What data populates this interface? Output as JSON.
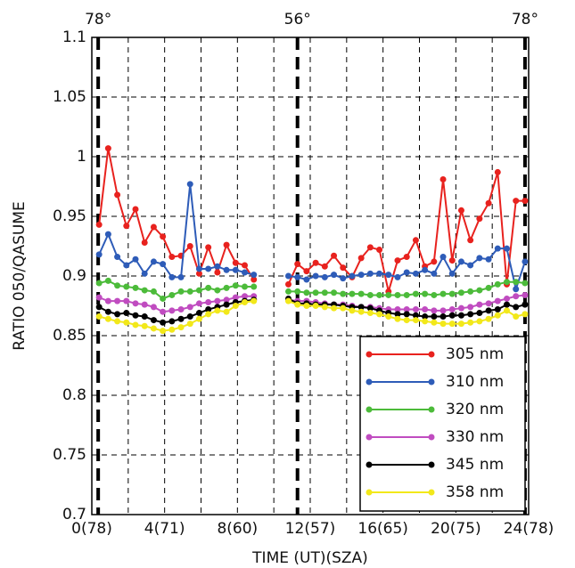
{
  "chart_data": {
    "type": "line",
    "x_label": "TIME (UT)(SZA)",
    "y_label": "RATIO 050/QASUME",
    "xlim": [
      0,
      24
    ],
    "ylim": [
      0.7,
      1.1
    ],
    "xticks": [
      {
        "value": 0,
        "label": "0(78)"
      },
      {
        "value": 4,
        "label": "4(71)"
      },
      {
        "value": 8,
        "label": "8(60)"
      },
      {
        "value": 12,
        "label": "12(57)"
      },
      {
        "value": 16,
        "label": "16(65)"
      },
      {
        "value": 20,
        "label": "20(75)"
      },
      {
        "value": 24,
        "label": "24(78)"
      }
    ],
    "xminor_ticks": [
      2,
      6,
      10,
      14,
      18,
      22
    ],
    "yticks": [
      0.7,
      0.75,
      0.8,
      0.85,
      0.9,
      0.95,
      1,
      1.05,
      1.1
    ],
    "grid": true,
    "legend": "lower right",
    "annotations": [
      {
        "x": 0.35,
        "label": "78°"
      },
      {
        "x": 11.3,
        "label": "56°"
      },
      {
        "x": 23.8,
        "label": "78°"
      }
    ],
    "x": [
      0.4,
      0.9,
      1.4,
      1.9,
      2.4,
      2.9,
      3.4,
      3.9,
      4.4,
      4.9,
      5.4,
      5.9,
      6.4,
      6.9,
      7.4,
      7.9,
      8.4,
      8.9,
      9.9,
      10.8,
      11.3,
      11.8,
      12.3,
      12.8,
      13.3,
      13.8,
      14.3,
      14.8,
      15.3,
      15.8,
      16.3,
      16.8,
      17.3,
      17.8,
      18.3,
      18.8,
      19.3,
      19.8,
      20.3,
      20.8,
      21.3,
      21.8,
      22.3,
      22.8,
      23.3,
      23.8
    ],
    "series": [
      {
        "name": "305 nm",
        "color": "#e8221e",
        "values": [
          0.943,
          1.007,
          0.968,
          0.942,
          0.956,
          0.928,
          0.941,
          0.933,
          0.916,
          0.917,
          0.925,
          0.902,
          0.924,
          0.903,
          0.926,
          0.911,
          0.909,
          0.897,
          null,
          0.893,
          0.91,
          0.904,
          0.911,
          0.908,
          0.917,
          0.907,
          0.899,
          0.915,
          0.924,
          0.922,
          0.887,
          0.913,
          0.916,
          0.93,
          0.908,
          0.912,
          0.981,
          0.913,
          0.955,
          0.93,
          0.948,
          0.961,
          0.987,
          0.893,
          0.963,
          0.963
        ]
      },
      {
        "name": "310 nm",
        "color": "#2e5cb8",
        "values": [
          0.918,
          0.935,
          0.916,
          0.909,
          0.914,
          0.902,
          0.912,
          0.91,
          0.899,
          0.899,
          0.977,
          0.906,
          0.906,
          0.908,
          0.905,
          0.905,
          0.903,
          0.901,
          null,
          0.9,
          0.899,
          0.897,
          0.9,
          0.899,
          0.901,
          0.898,
          0.9,
          0.901,
          0.902,
          0.902,
          0.901,
          0.899,
          0.903,
          0.902,
          0.905,
          0.902,
          0.916,
          0.902,
          0.912,
          0.909,
          0.915,
          0.914,
          0.923,
          0.923,
          0.889,
          0.912
        ]
      },
      {
        "name": "320 nm",
        "color": "#4cbb3a",
        "values": [
          0.894,
          0.896,
          0.892,
          0.891,
          0.89,
          0.888,
          0.887,
          0.881,
          0.884,
          0.887,
          0.887,
          0.888,
          0.89,
          0.888,
          0.89,
          0.892,
          0.891,
          0.891,
          null,
          0.887,
          0.887,
          0.886,
          0.886,
          0.886,
          0.886,
          0.885,
          0.885,
          0.885,
          0.884,
          0.884,
          0.884,
          0.884,
          0.884,
          0.885,
          0.885,
          0.884,
          0.885,
          0.885,
          0.886,
          0.887,
          0.888,
          0.89,
          0.893,
          0.895,
          0.895,
          0.894
        ]
      },
      {
        "name": "330 nm",
        "color": "#c04cc0",
        "values": [
          0.882,
          0.879,
          0.879,
          0.879,
          0.877,
          0.876,
          0.874,
          0.87,
          0.871,
          0.872,
          0.874,
          0.877,
          0.878,
          0.879,
          0.88,
          0.882,
          0.883,
          0.883,
          null,
          0.88,
          0.879,
          0.879,
          0.878,
          0.877,
          0.876,
          0.876,
          0.875,
          0.874,
          0.874,
          0.873,
          0.872,
          0.872,
          0.872,
          0.872,
          0.872,
          0.871,
          0.871,
          0.872,
          0.873,
          0.874,
          0.876,
          0.877,
          0.879,
          0.881,
          0.883,
          0.884
        ]
      },
      {
        "name": "345 nm",
        "color": "#000000",
        "values": [
          0.874,
          0.87,
          0.868,
          0.869,
          0.867,
          0.866,
          0.863,
          0.861,
          0.862,
          0.864,
          0.866,
          0.869,
          0.872,
          0.874,
          0.876,
          0.878,
          0.879,
          0.88,
          null,
          0.881,
          0.877,
          0.877,
          0.876,
          0.876,
          0.876,
          0.875,
          0.874,
          0.874,
          0.873,
          0.871,
          0.869,
          0.868,
          0.868,
          0.867,
          0.866,
          0.866,
          0.866,
          0.867,
          0.867,
          0.868,
          0.869,
          0.871,
          0.872,
          0.876,
          0.874,
          0.876
        ]
      },
      {
        "name": "358 nm",
        "color": "#f2e81a",
        "values": [
          0.866,
          0.864,
          0.862,
          0.861,
          0.859,
          0.858,
          0.856,
          0.854,
          0.855,
          0.857,
          0.86,
          0.864,
          0.868,
          0.871,
          0.87,
          0.875,
          0.878,
          0.879,
          null,
          0.879,
          0.876,
          0.875,
          0.875,
          0.874,
          0.873,
          0.873,
          0.871,
          0.87,
          0.869,
          0.868,
          0.866,
          0.864,
          0.863,
          0.863,
          0.862,
          0.861,
          0.86,
          0.86,
          0.86,
          0.861,
          0.862,
          0.864,
          0.867,
          0.871,
          0.866,
          0.868
        ]
      }
    ]
  }
}
